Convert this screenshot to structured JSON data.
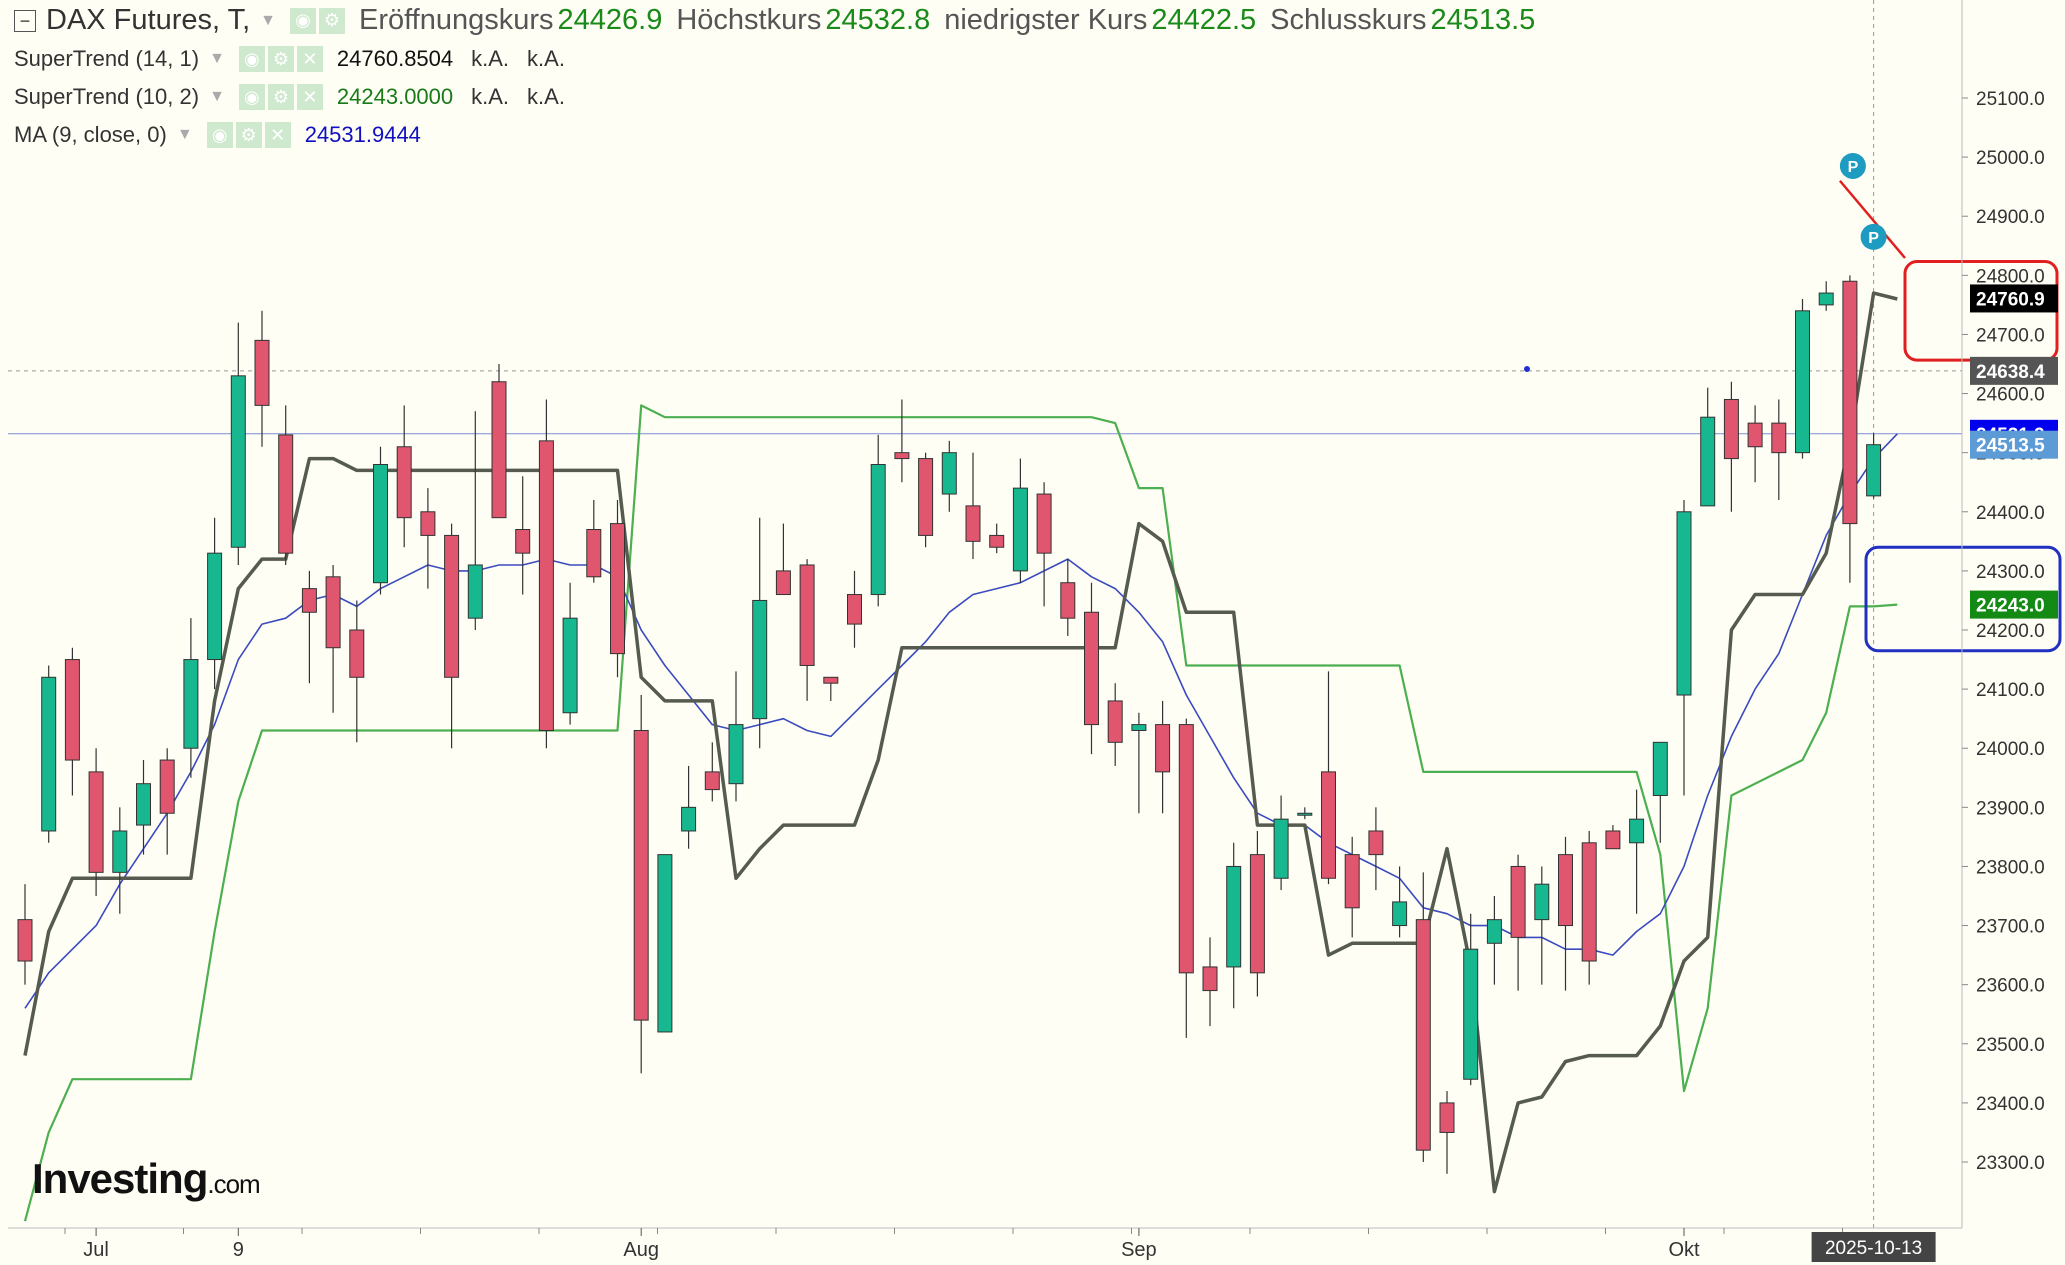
{
  "header": {
    "instrument": "DAX Futures, T,",
    "ohlc": [
      {
        "label": "Eröffnungskurs",
        "value": "24426.9"
      },
      {
        "label": "Höchstkurs",
        "value": "24532.8"
      },
      {
        "label": "niedrigster Kurs",
        "value": "24422.5"
      },
      {
        "label": "Schlusskurs",
        "value": "24513.5"
      }
    ]
  },
  "indicators": [
    {
      "name": "SuperTrend (14, 1)",
      "value": "24760.8504",
      "na1": "k.A.",
      "na2": "k.A.",
      "color": "#111111"
    },
    {
      "name": "SuperTrend (10, 2)",
      "value": "24243.0000",
      "na1": "k.A.",
      "na2": "k.A.",
      "color": "#1a7a1a"
    },
    {
      "name": "MA (9, close, 0)",
      "value": "24531.9444",
      "color": "#1010c0"
    }
  ],
  "logo": {
    "brand": "Investing",
    "suffix": ".com"
  },
  "chart_data": {
    "type": "candlestick",
    "ylim": [
      23210,
      25130
    ],
    "yticks": [
      23300,
      23400,
      23500,
      23600,
      23700,
      23800,
      23900,
      24000,
      24100,
      24200,
      24300,
      24400,
      24500,
      24600,
      24700,
      24800,
      24900,
      25000,
      25100
    ],
    "ytick_labels": [
      "23300.0",
      "23400.0",
      "23500.0",
      "23600.0",
      "23700.0",
      "23800.0",
      "23900.0",
      "24000.0",
      "24100.0",
      "24200.0",
      "24300.0",
      "24400.0",
      "24500.0",
      "24600.0",
      "24700.0",
      "24800.0",
      "24900.0",
      "25000.0",
      "25100.0"
    ],
    "xtick_labels": [
      {
        "index": 3,
        "label": "Jul"
      },
      {
        "index": 9,
        "label": "9"
      },
      {
        "index": 26,
        "label": "Aug"
      },
      {
        "index": 47,
        "label": "Sep"
      },
      {
        "index": 70,
        "label": "Okt"
      }
    ],
    "last_date_label": "2025-10-13",
    "candles": [
      [
        23710,
        23640,
        23770,
        23600
      ],
      [
        23860,
        24120,
        24140,
        23840
      ],
      [
        24150,
        23980,
        24170,
        23920
      ],
      [
        23960,
        23790,
        24000,
        23750
      ],
      [
        23790,
        23860,
        23900,
        23720
      ],
      [
        23870,
        23940,
        23980,
        23820
      ],
      [
        23980,
        23890,
        24000,
        23820
      ],
      [
        24000,
        24150,
        24220,
        23950
      ],
      [
        24150,
        24330,
        24390,
        24100
      ],
      [
        24340,
        24630,
        24720,
        24310
      ],
      [
        24690,
        24580,
        24740,
        24510
      ],
      [
        24530,
        24330,
        24580,
        24310
      ],
      [
        24270,
        24230,
        24300,
        24110
      ],
      [
        24290,
        24170,
        24310,
        24060
      ],
      [
        24200,
        24120,
        24250,
        24010
      ],
      [
        24280,
        24480,
        24510,
        24260
      ],
      [
        24510,
        24390,
        24580,
        24340
      ],
      [
        24400,
        24360,
        24440,
        24270
      ],
      [
        24360,
        24120,
        24380,
        24000
      ],
      [
        24220,
        24310,
        24570,
        24200
      ],
      [
        24620,
        24390,
        24650,
        24400
      ],
      [
        24370,
        24330,
        24460,
        24260
      ],
      [
        24520,
        24030,
        24590,
        24000
      ],
      [
        24060,
        24220,
        24280,
        24040
      ],
      [
        24370,
        24290,
        24420,
        24280
      ],
      [
        24380,
        24160,
        24420,
        24120
      ],
      [
        24030,
        23540,
        24090,
        23450
      ],
      [
        23520,
        23820,
        23820,
        23550
      ],
      [
        23860,
        23900,
        23970,
        23830
      ],
      [
        23960,
        23930,
        24010,
        23910
      ],
      [
        23940,
        24040,
        24130,
        23910
      ],
      [
        24050,
        24250,
        24390,
        24000
      ],
      [
        24300,
        24260,
        24380,
        24260
      ],
      [
        24310,
        24140,
        24320,
        24080
      ],
      [
        24120,
        24110,
        24120,
        24080
      ],
      [
        24260,
        24210,
        24300,
        24170
      ],
      [
        24260,
        24480,
        24530,
        24240
      ],
      [
        24500,
        24490,
        24590,
        24450
      ],
      [
        24490,
        24360,
        24500,
        24340
      ],
      [
        24430,
        24500,
        24520,
        24400
      ],
      [
        24410,
        24350,
        24500,
        24320
      ],
      [
        24360,
        24340,
        24380,
        24330
      ],
      [
        24300,
        24440,
        24490,
        24280
      ],
      [
        24430,
        24330,
        24450,
        24240
      ],
      [
        24280,
        24220,
        24320,
        24190
      ],
      [
        24230,
        24040,
        24280,
        23990
      ],
      [
        24080,
        24010,
        24110,
        23970
      ],
      [
        24030,
        24040,
        24060,
        23890
      ],
      [
        24040,
        23960,
        24080,
        23890
      ],
      [
        24040,
        23620,
        24050,
        23510
      ],
      [
        23630,
        23590,
        23680,
        23530
      ],
      [
        23630,
        23800,
        23840,
        23560
      ],
      [
        23820,
        23620,
        23860,
        23580
      ],
      [
        23780,
        23880,
        23920,
        23760
      ],
      [
        23890,
        23890,
        23900,
        23880
      ],
      [
        23960,
        23780,
        24130,
        23770
      ],
      [
        23820,
        23730,
        23850,
        23680
      ],
      [
        23860,
        23820,
        23900,
        23760
      ],
      [
        23700,
        23740,
        23800,
        23680
      ],
      [
        23710,
        23320,
        23790,
        23300
      ],
      [
        23400,
        23350,
        23420,
        23280
      ],
      [
        23440,
        23660,
        23720,
        23430
      ],
      [
        23670,
        23710,
        23750,
        23600
      ],
      [
        23800,
        23680,
        23820,
        23590
      ],
      [
        23710,
        23770,
        23800,
        23600
      ],
      [
        23820,
        23700,
        23850,
        23590
      ],
      [
        23840,
        23640,
        23860,
        23600
      ],
      [
        23860,
        23830,
        23870,
        23830
      ],
      [
        23840,
        23880,
        23930,
        23720
      ],
      [
        23920,
        24010,
        24010,
        23840
      ],
      [
        24090,
        24400,
        24420,
        23920
      ],
      [
        24410,
        24560,
        24610,
        24520
      ],
      [
        24590,
        24490,
        24620,
        24400
      ],
      [
        24550,
        24510,
        24580,
        24450
      ],
      [
        24550,
        24500,
        24590,
        24420
      ],
      [
        24500,
        24740,
        24760,
        24490
      ],
      [
        24750,
        24770,
        24790,
        24740
      ],
      [
        24790,
        24380,
        24800,
        24280
      ],
      [
        24426.9,
        24513.5,
        24532.8,
        24422.5
      ]
    ],
    "supertrend_14_1": [
      23480,
      23690,
      23780,
      23780,
      23780,
      23780,
      23780,
      23780,
      24080,
      24270,
      24320,
      24320,
      24490,
      24490,
      24470,
      24470,
      24470,
      24470,
      24470,
      24470,
      24470,
      24470,
      24470,
      24470,
      24470,
      24470,
      24120,
      24080,
      24080,
      24080,
      23780,
      23830,
      23870,
      23870,
      23870,
      23870,
      23980,
      24170,
      24170,
      24170,
      24170,
      24170,
      24170,
      24170,
      24170,
      24170,
      24170,
      24380,
      24350,
      24230,
      24230,
      24230,
      23870,
      23870,
      23870,
      23650,
      23670,
      23670,
      23670,
      23670,
      23830,
      23630,
      23250,
      23400,
      23410,
      23470,
      23480,
      23480,
      23480,
      23530,
      23640,
      23680,
      24200,
      24260,
      24260,
      24260,
      24330,
      24520,
      24770,
      24760
    ],
    "supertrend_10_2": [
      23200,
      23350,
      23440,
      23440,
      23440,
      23440,
      23440,
      23440,
      23690,
      23910,
      24030,
      24030,
      24030,
      24030,
      24030,
      24030,
      24030,
      24030,
      24030,
      24030,
      24030,
      24030,
      24030,
      24030,
      24030,
      24030,
      24580,
      24560,
      24560,
      24560,
      24560,
      24560,
      24560,
      24560,
      24560,
      24560,
      24560,
      24560,
      24560,
      24560,
      24560,
      24560,
      24560,
      24560,
      24560,
      24560,
      24550,
      24440,
      24440,
      24140,
      24140,
      24140,
      24140,
      24140,
      24140,
      24140,
      24140,
      24140,
      24140,
      23960,
      23960,
      23960,
      23960,
      23960,
      23960,
      23960,
      23960,
      23960,
      23960,
      23820,
      23420,
      23560,
      23920,
      23940,
      23960,
      23980,
      24060,
      24240,
      24240,
      24243
    ],
    "ma_9": [
      23560,
      23620,
      23660,
      23700,
      23770,
      23830,
      23890,
      23960,
      24040,
      24150,
      24210,
      24220,
      24250,
      24260,
      24240,
      24270,
      24290,
      24310,
      24300,
      24300,
      24310,
      24310,
      24320,
      24310,
      24310,
      24290,
      24200,
      24140,
      24090,
      24040,
      24030,
      24040,
      24050,
      24030,
      24020,
      24060,
      24100,
      24140,
      24180,
      24230,
      24260,
      24270,
      24280,
      24300,
      24320,
      24290,
      24270,
      24230,
      24180,
      24090,
      24020,
      23950,
      23890,
      23870,
      23870,
      23840,
      23820,
      23800,
      23780,
      23730,
      23720,
      23700,
      23700,
      23680,
      23680,
      23660,
      23660,
      23650,
      23690,
      23720,
      23800,
      23920,
      24020,
      24100,
      24160,
      24260,
      24360,
      24430,
      24490,
      24531.9
    ],
    "price_labels": [
      {
        "value": 24760.9,
        "text": "24760.9",
        "bg": "#000000",
        "fg": "#ffffff"
      },
      {
        "value": 24638.4,
        "text": "24638.4",
        "bg": "#555555",
        "fg": "#ffffff"
      },
      {
        "value": 24531.9,
        "text": "24531.9",
        "bg": "#0000ee",
        "fg": "#ffffff"
      },
      {
        "value": 24513.5,
        "text": "24513.5",
        "bg": "#5c9bd6",
        "fg": "#ffffff"
      },
      {
        "value": 24243.0,
        "text": "24243.0",
        "bg": "#138a13",
        "fg": "#ffffff"
      }
    ],
    "annotations": {
      "pivot_marker": "P",
      "trend_line_from": {
        "index": 77,
        "value": 24960
      },
      "trend_line_to": {
        "index": 81,
        "value": 24720
      },
      "red_box_range": [
        24660,
        24820
      ],
      "blue_box_range": [
        24165,
        24340
      ]
    },
    "colors": {
      "up": "#17b890",
      "down": "#e0566e",
      "supertrend1": "#555b4f",
      "supertrend2": "#4caf50",
      "supertrend2_upper": "#a8554b",
      "ma": "#3a4bbf",
      "marker": "#1e9bc0"
    }
  }
}
